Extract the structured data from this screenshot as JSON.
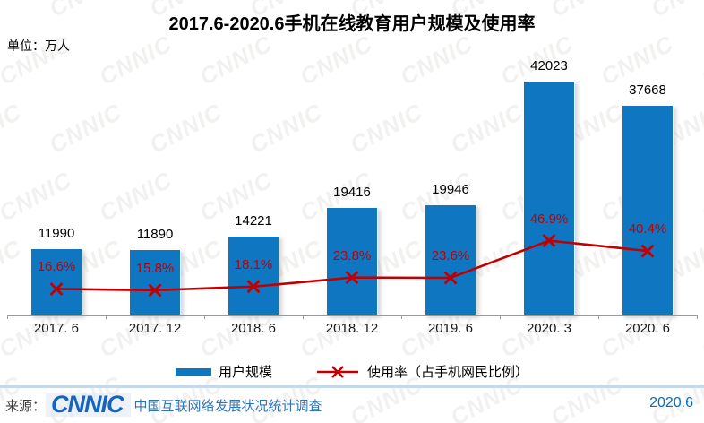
{
  "title": "2017.6-2020.6手机在线教育用户规模及使用率",
  "unit_label": "单位：万人",
  "watermark_text": "CNNIC",
  "colors": {
    "bar": "#0F76C2",
    "line": "#C00000",
    "percent_label": "#C00000",
    "value_label": "#000000",
    "axis": "#9a9a9a",
    "divider": "#C5D9EE",
    "survey_blue": "#2E74B5",
    "logo_blue": "#1565C0",
    "date_blue": "#0070C0"
  },
  "chart_data": {
    "type": "bar",
    "title": "2017.6-2020.6手机在线教育用户规模及使用率",
    "unit": "万人",
    "categories": [
      "2017. 6",
      "2017. 12",
      "2018. 6",
      "2018. 12",
      "2019. 6",
      "2020. 3",
      "2020. 6"
    ],
    "grid": "off",
    "legend_position": "bottom",
    "series": [
      {
        "name": "用户规模",
        "type": "bar",
        "values": [
          11990,
          11890,
          14221,
          19416,
          19946,
          42023,
          37668
        ],
        "value_labels": [
          "11990",
          "11890",
          "14221",
          "19416",
          "19946",
          "42023",
          "37668"
        ]
      },
      {
        "name": "使用率（占手机网民比例）",
        "type": "line",
        "values": [
          16.6,
          15.8,
          18.1,
          23.8,
          23.6,
          46.9,
          40.4
        ],
        "value_labels": [
          "16.6%",
          "15.8%",
          "18.1%",
          "23.8%",
          "23.6%",
          "46.9%",
          "40.4%"
        ]
      }
    ]
  },
  "legend": {
    "bar_label": "用户规模",
    "line_label": "使用率（占手机网民比例）"
  },
  "footer": {
    "source_label": "来源：",
    "logo_text": "CNNIC",
    "survey_text": "中国互联网络发展状况统计调查",
    "date": "2020.6"
  }
}
